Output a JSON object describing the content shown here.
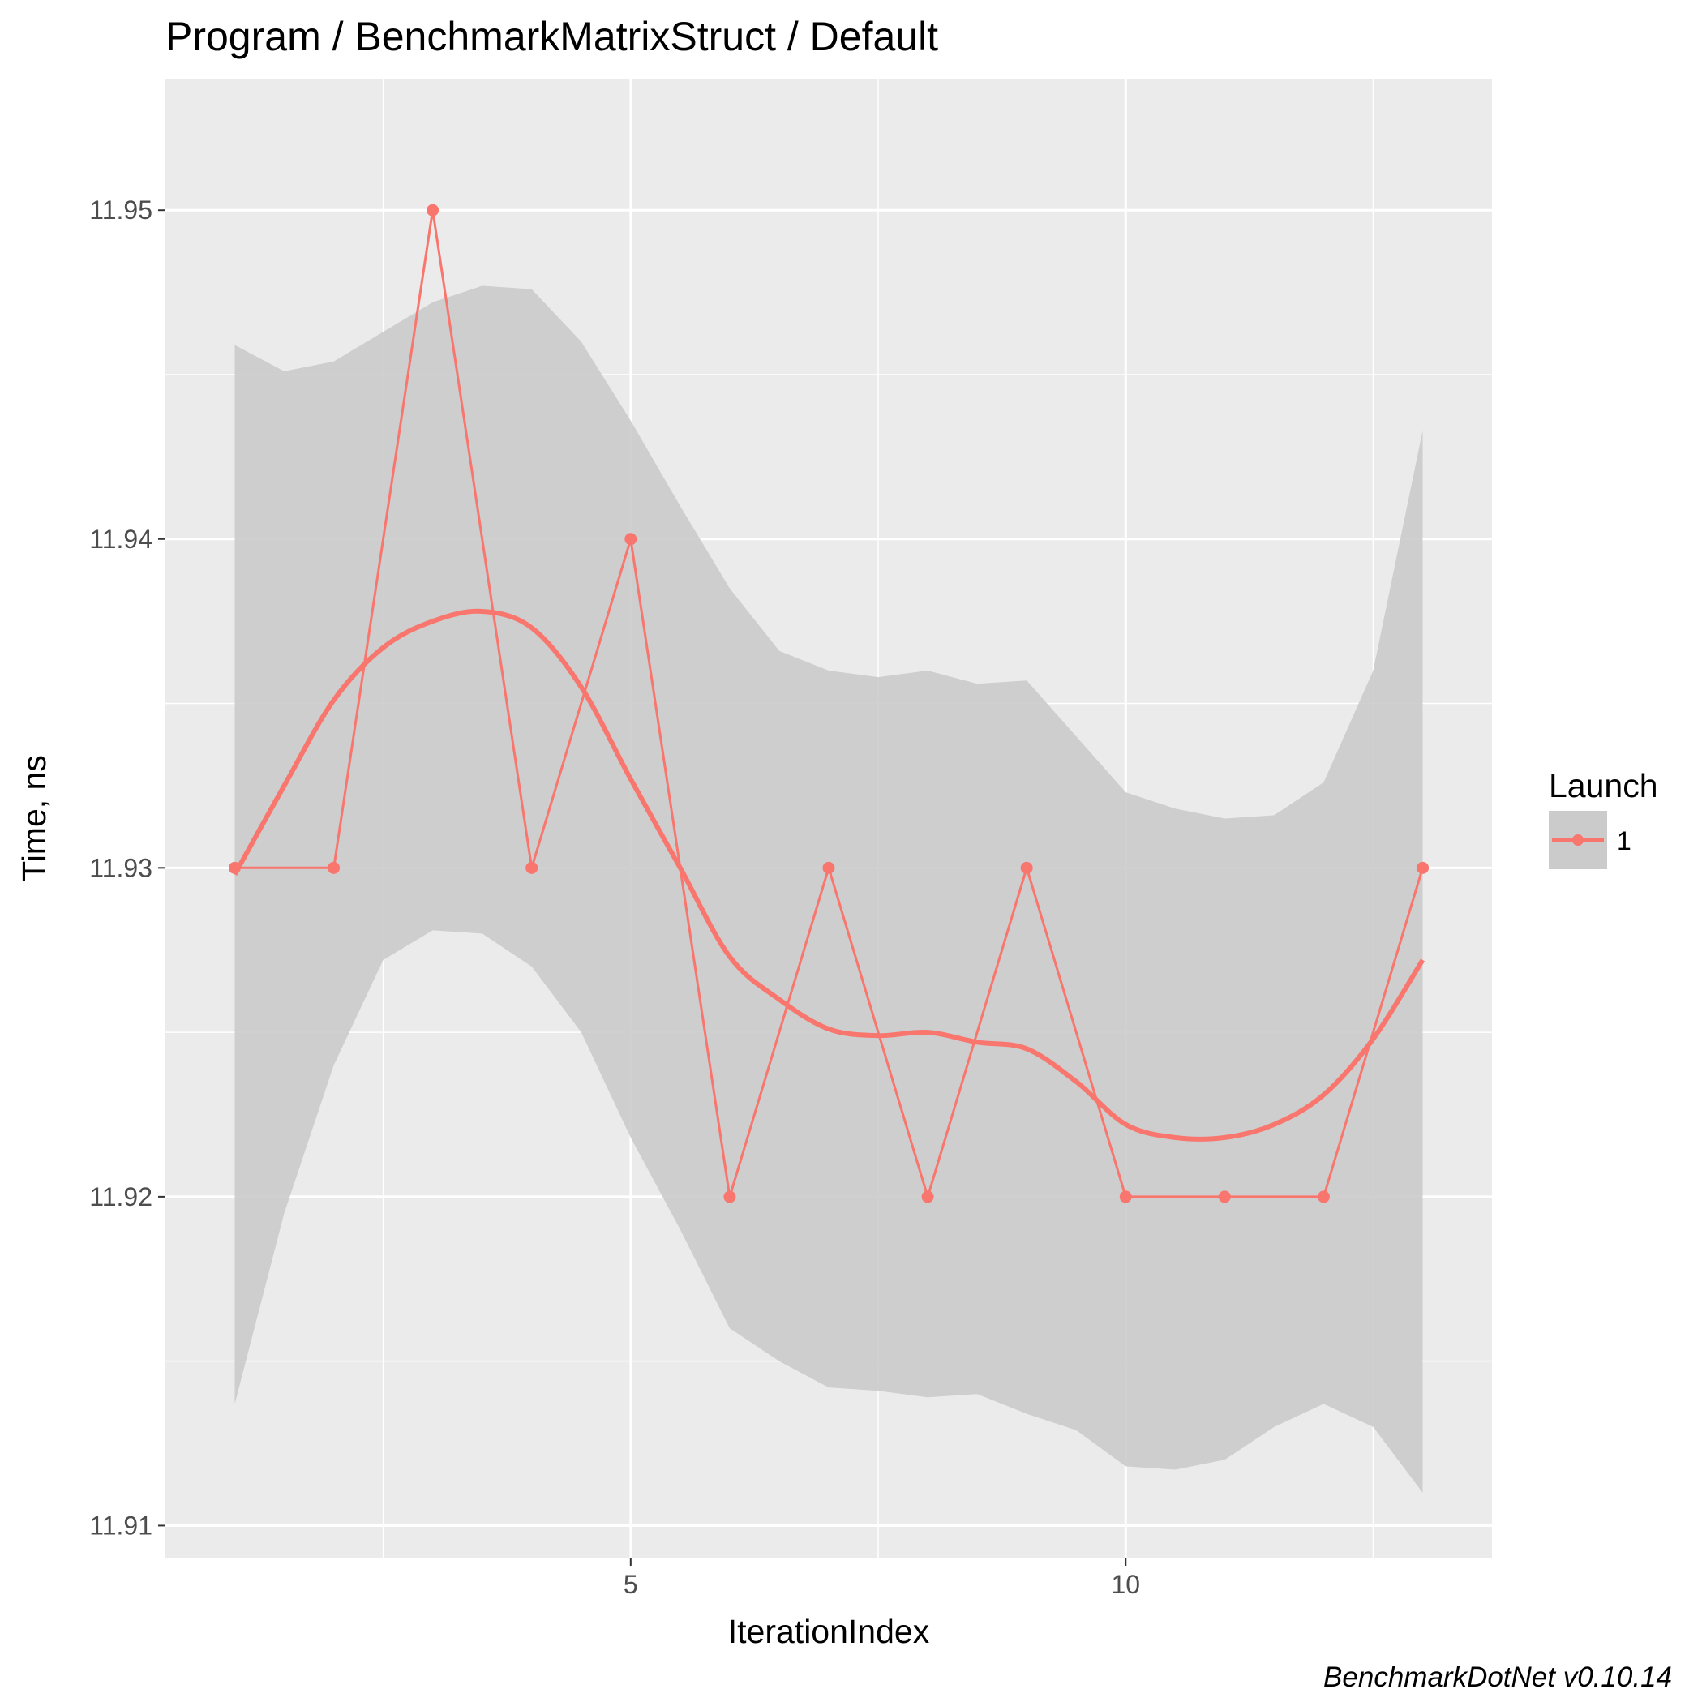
{
  "chart_data": {
    "type": "line",
    "title": "Program / BenchmarkMatrixStruct / Default",
    "xlabel": "IterationIndex",
    "ylabel": "Time, ns",
    "caption": "BenchmarkDotNet v0.10.14",
    "xlim": [
      0.3,
      13.7
    ],
    "ylim": [
      11.909,
      11.954
    ],
    "x_ticks": [
      5,
      10
    ],
    "x_tick_labels": [
      "5",
      "10"
    ],
    "y_ticks": [
      11.91,
      11.92,
      11.93,
      11.94,
      11.95
    ],
    "y_tick_labels": [
      "11.91",
      "11.92",
      "11.93",
      "11.94",
      "11.95"
    ],
    "grid": true,
    "legend": {
      "title": "Launch",
      "position": "right",
      "entries": [
        "1"
      ]
    },
    "colors": {
      "series": "#F8766D",
      "ribbon": "#CBCBCB",
      "panel": "#EBEBEB",
      "grid": "#FFFFFF"
    },
    "series": [
      {
        "name": "1",
        "x": [
          1,
          2,
          3,
          4,
          5,
          6,
          7,
          8,
          9,
          10,
          11,
          12,
          13
        ],
        "y": [
          11.93,
          11.93,
          11.95,
          11.93,
          11.94,
          11.92,
          11.93,
          11.92,
          11.93,
          11.92,
          11.92,
          11.92,
          11.93
        ]
      }
    ],
    "smooth": {
      "x": [
        1,
        1.5,
        2,
        2.5,
        3,
        3.5,
        4,
        4.5,
        5,
        5.5,
        6,
        6.5,
        7,
        7.5,
        8,
        8.5,
        9,
        9.5,
        10,
        10.5,
        11,
        11.5,
        12,
        12.5,
        13
      ],
      "y": [
        11.9298,
        11.9325,
        11.9351,
        11.9367,
        11.9375,
        11.9378,
        11.9373,
        11.9355,
        11.9327,
        11.93,
        11.9273,
        11.926,
        11.9251,
        11.9249,
        11.925,
        11.9247,
        11.9245,
        11.9235,
        11.9222,
        11.9218,
        11.9218,
        11.9222,
        11.9231,
        11.9248,
        11.9272
      ],
      "ymin": [
        11.9137,
        11.9195,
        11.924,
        11.9272,
        11.9281,
        11.928,
        11.927,
        11.925,
        11.9218,
        11.919,
        11.916,
        11.915,
        11.9142,
        11.9141,
        11.9139,
        11.914,
        11.9134,
        11.9129,
        11.9118,
        11.9117,
        11.912,
        11.913,
        11.9137,
        11.913,
        11.911
      ],
      "ymax": [
        11.9459,
        11.9451,
        11.9454,
        11.9463,
        11.9472,
        11.9477,
        11.9476,
        11.946,
        11.9436,
        11.941,
        11.9385,
        11.9366,
        11.936,
        11.9358,
        11.936,
        11.9356,
        11.9357,
        11.934,
        11.9323,
        11.9318,
        11.9315,
        11.9316,
        11.9326,
        11.936,
        11.9433
      ]
    }
  }
}
